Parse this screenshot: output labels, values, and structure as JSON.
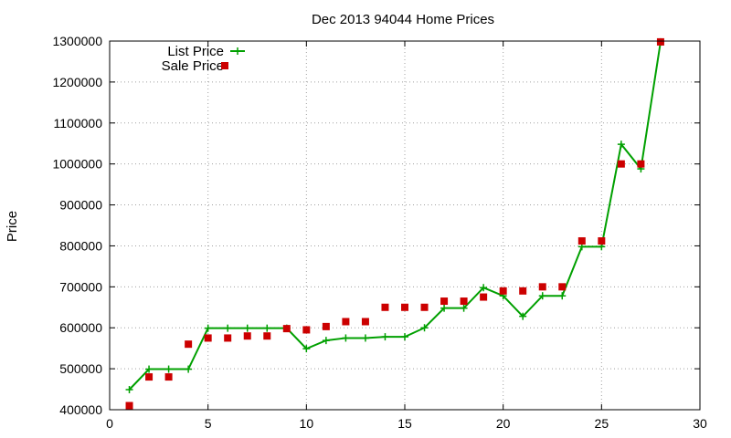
{
  "chart_data": {
    "type": "line",
    "title": "Dec 2013 94044 Home Prices",
    "xlabel": "",
    "ylabel": "Price",
    "xlim": [
      0,
      30
    ],
    "ylim": [
      400000,
      1300000
    ],
    "xticks": [
      0,
      5,
      10,
      15,
      20,
      25,
      30
    ],
    "yticks": [
      400000,
      500000,
      600000,
      700000,
      800000,
      900000,
      1000000,
      1100000,
      1200000,
      1300000
    ],
    "grid": true,
    "legend_position": "top-left",
    "x": [
      1,
      2,
      3,
      4,
      5,
      6,
      7,
      8,
      9,
      10,
      11,
      12,
      13,
      14,
      15,
      16,
      17,
      18,
      19,
      20,
      21,
      22,
      23,
      24,
      25,
      26,
      27,
      28
    ],
    "series": [
      {
        "name": "List Price",
        "style": "line+plus",
        "color": "#00a000",
        "values": [
          449000,
          499000,
          499000,
          499000,
          599000,
          599000,
          599000,
          599000,
          599000,
          549000,
          569000,
          575000,
          575000,
          578000,
          578000,
          600000,
          648000,
          648000,
          698000,
          678000,
          628000,
          678000,
          678000,
          798000,
          798000,
          1048000,
          988000,
          1298000
        ]
      },
      {
        "name": "Sale Price",
        "style": "square",
        "color": "#cc0000",
        "values": [
          410000,
          480000,
          480000,
          560000,
          575000,
          575000,
          580000,
          580000,
          598000,
          595000,
          603000,
          615000,
          615000,
          650000,
          650000,
          650000,
          665000,
          665000,
          675000,
          690000,
          690000,
          700000,
          700000,
          812000,
          812000,
          1000000,
          1000000,
          1298000
        ]
      }
    ]
  }
}
